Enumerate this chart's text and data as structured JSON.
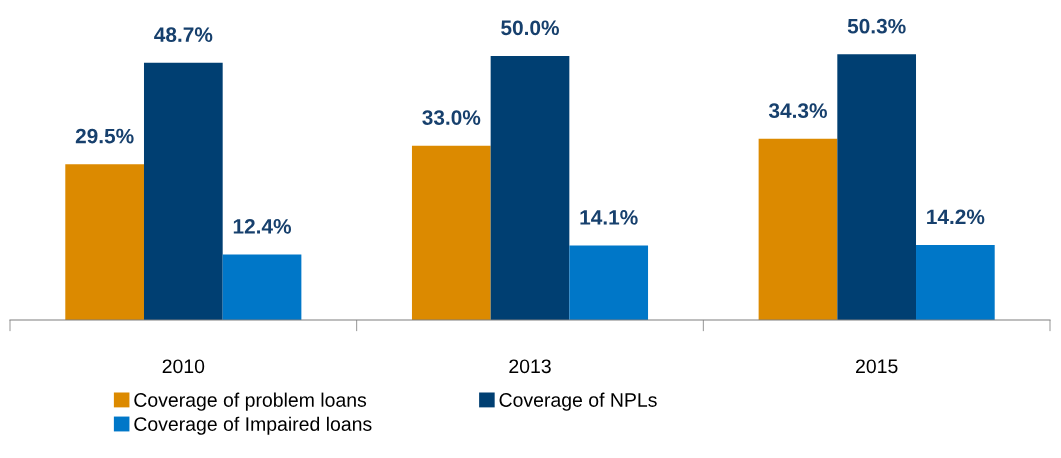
{
  "chart_data": {
    "type": "bar",
    "categories": [
      "2010",
      "2013",
      "2015"
    ],
    "series": [
      {
        "name": "Coverage of problem loans",
        "color": "#dc8a00",
        "values": [
          29.5,
          33.0,
          34.3
        ],
        "value_labels": [
          "29.5%",
          "33.0%",
          "34.3%"
        ]
      },
      {
        "name": "Coverage of NPLs",
        "color": "#003f72",
        "values": [
          48.7,
          50.0,
          50.3
        ],
        "value_labels": [
          "48.7%",
          "50.0%",
          "50.3%"
        ]
      },
      {
        "name": "Coverage of Impaired loans",
        "color": "#0077c8",
        "values": [
          12.4,
          14.1,
          14.2
        ],
        "value_labels": [
          "12.4%",
          "14.1%",
          "14.2%"
        ]
      }
    ],
    "tick_labels": "x",
    "grid": false,
    "legend": "bottom"
  }
}
